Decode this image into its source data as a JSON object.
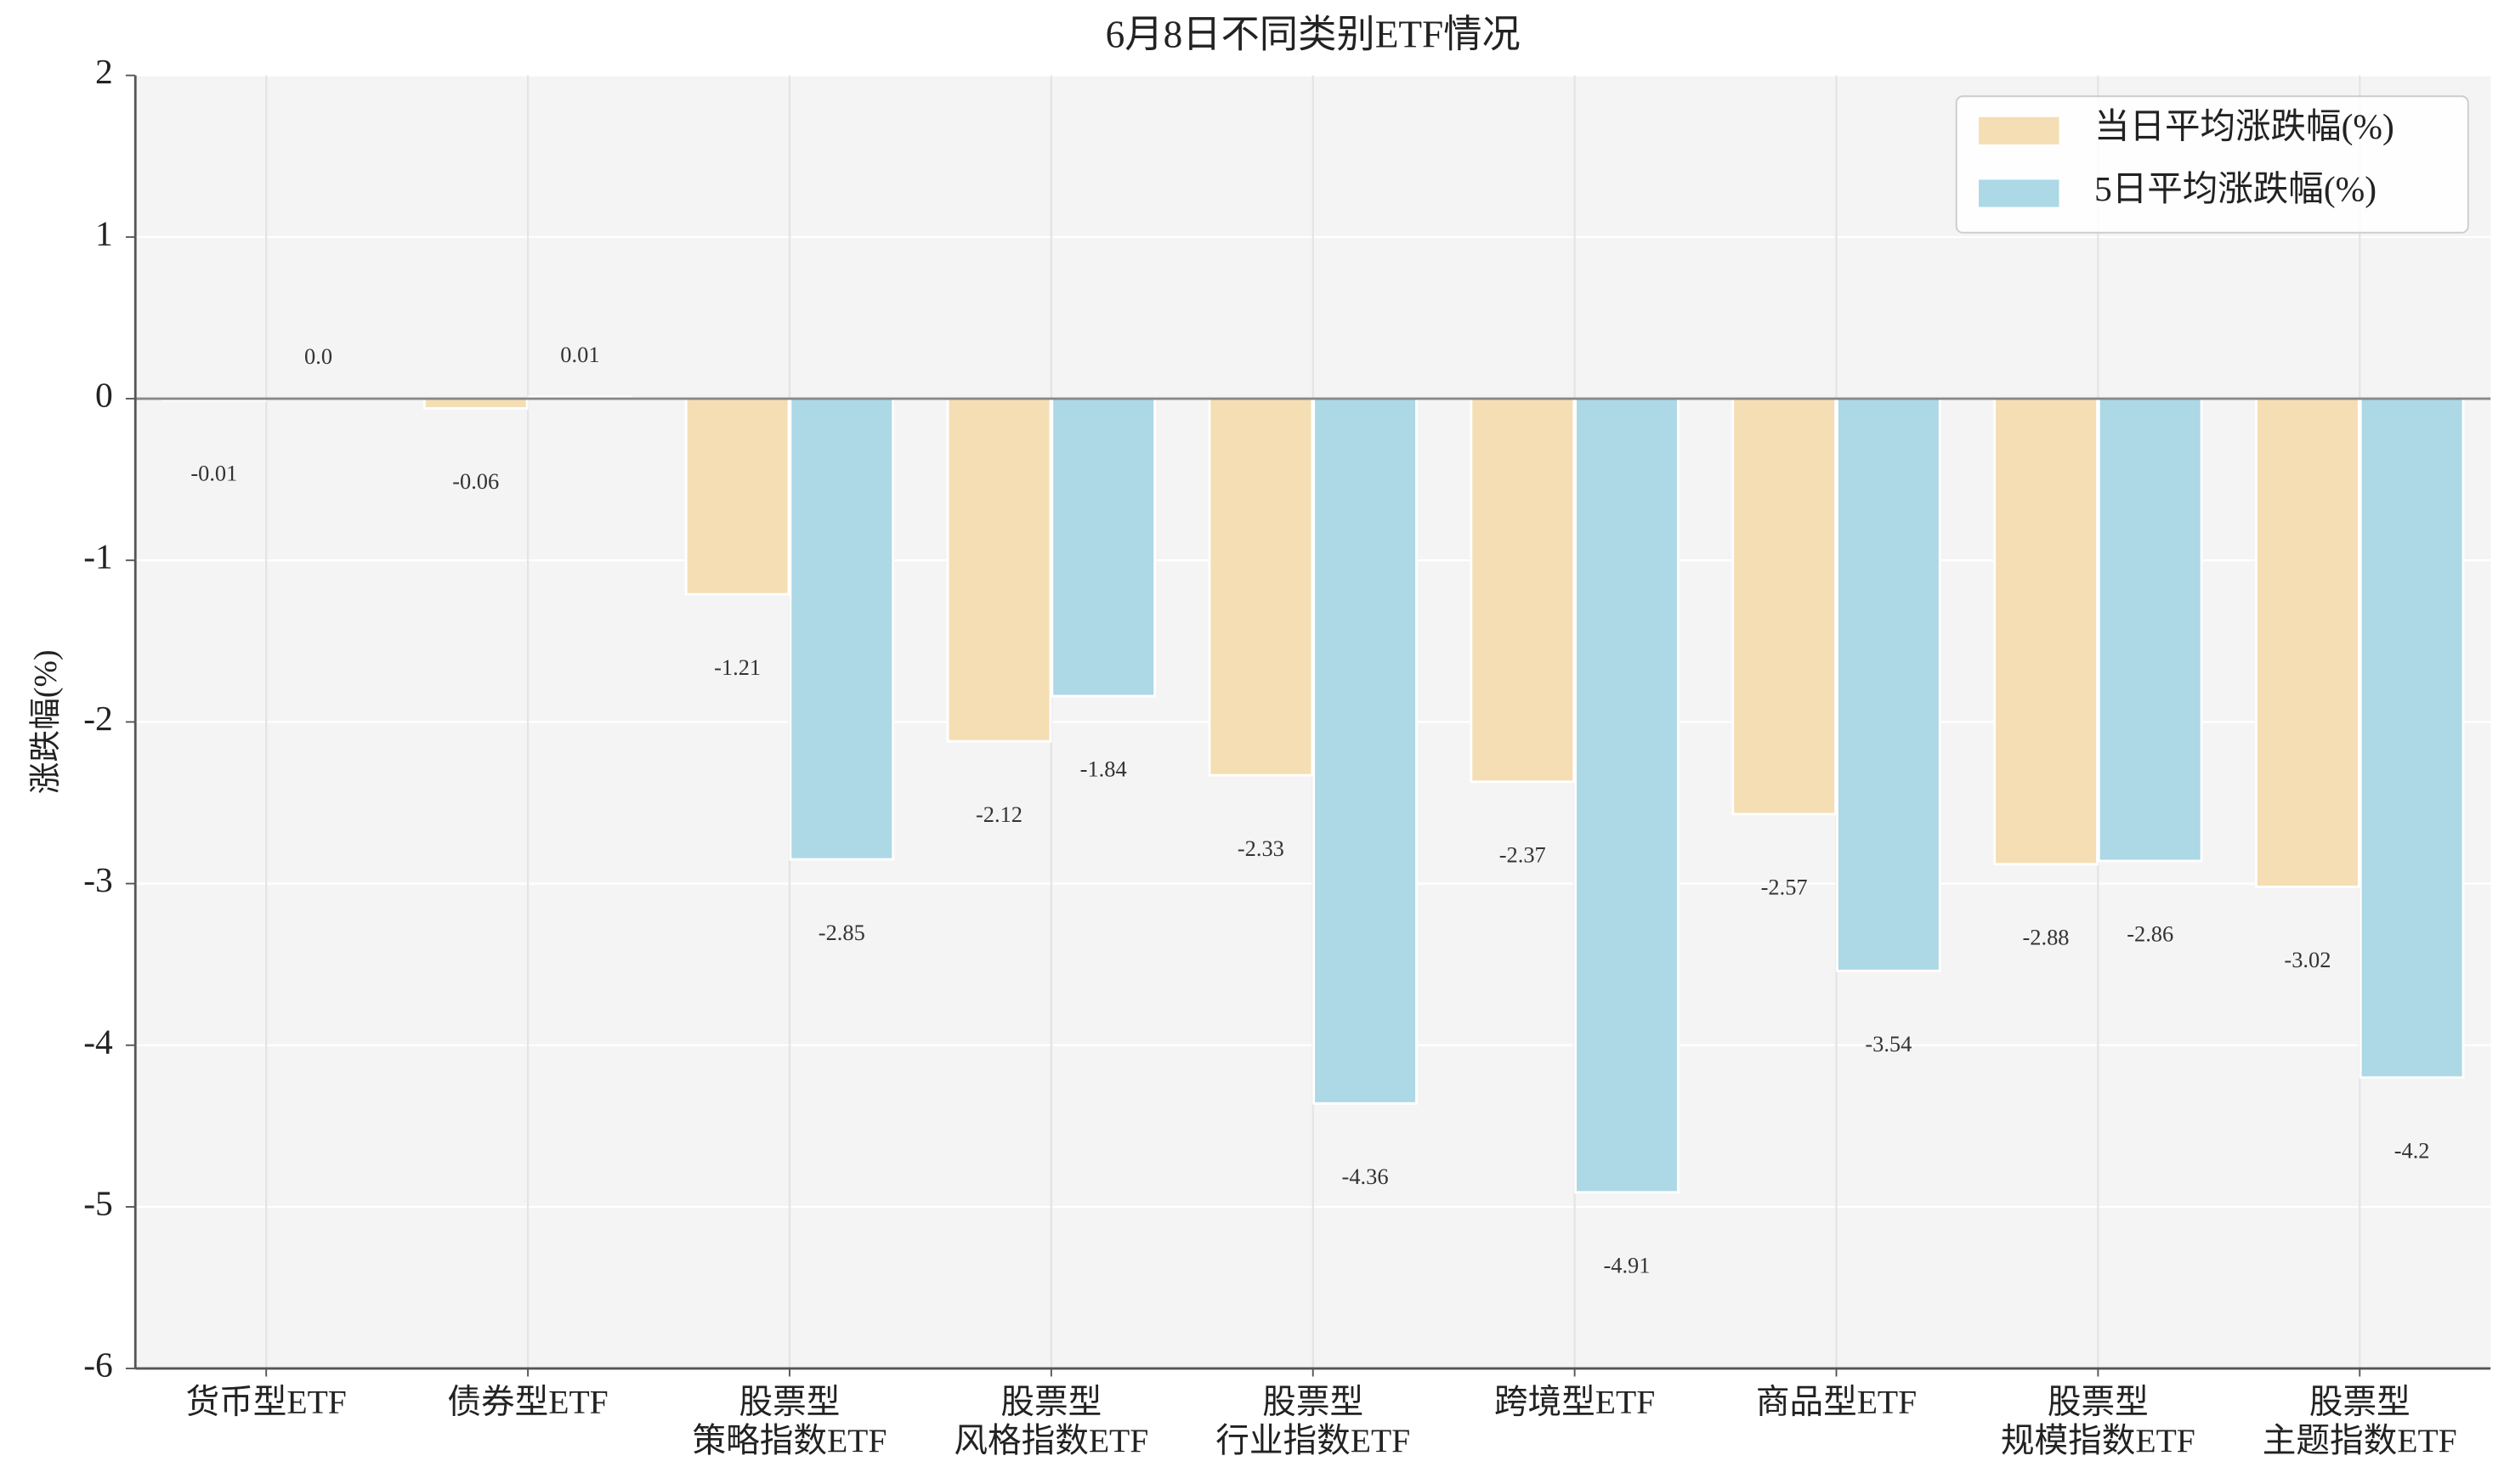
{
  "chart_data": {
    "type": "bar",
    "title": "6月8日不同类别ETF情况",
    "y_label": "涨跌幅(%)",
    "categories": [
      "货币型ETF",
      "债券型ETF",
      "股票型\n策略指数ETF",
      "股票型\n风格指数ETF",
      "股票型\n行业指数ETF",
      "跨境型ETF",
      "商品型ETF",
      "股票型\n规模指数ETF",
      "股票型\n主题指数ETF"
    ],
    "series": [
      {
        "name": "当日平均涨跌幅(%)",
        "color": "#f5deb3",
        "values": [
          -0.01,
          -0.06,
          -1.21,
          -2.12,
          -2.33,
          -2.37,
          -2.57,
          -2.88,
          -3.02
        ]
      },
      {
        "name": "5日平均涨跌幅(%)",
        "color": "#add8e6",
        "values": [
          0,
          0.01,
          -2.85,
          -1.84,
          -4.36,
          -4.91,
          -3.54,
          -2.86,
          -4.2
        ],
        "value_labels": [
          "0.0",
          "0.01",
          "-2.85",
          "-1.84",
          "-4.36",
          "-4.91",
          "-3.54",
          "-2.86",
          "-4.2"
        ]
      }
    ],
    "ylim": [
      -6,
      2
    ],
    "yticks": [
      -6,
      -5,
      -4,
      -3,
      -2,
      -1,
      0,
      1,
      2
    ],
    "grid": true,
    "legend": "upper right"
  }
}
